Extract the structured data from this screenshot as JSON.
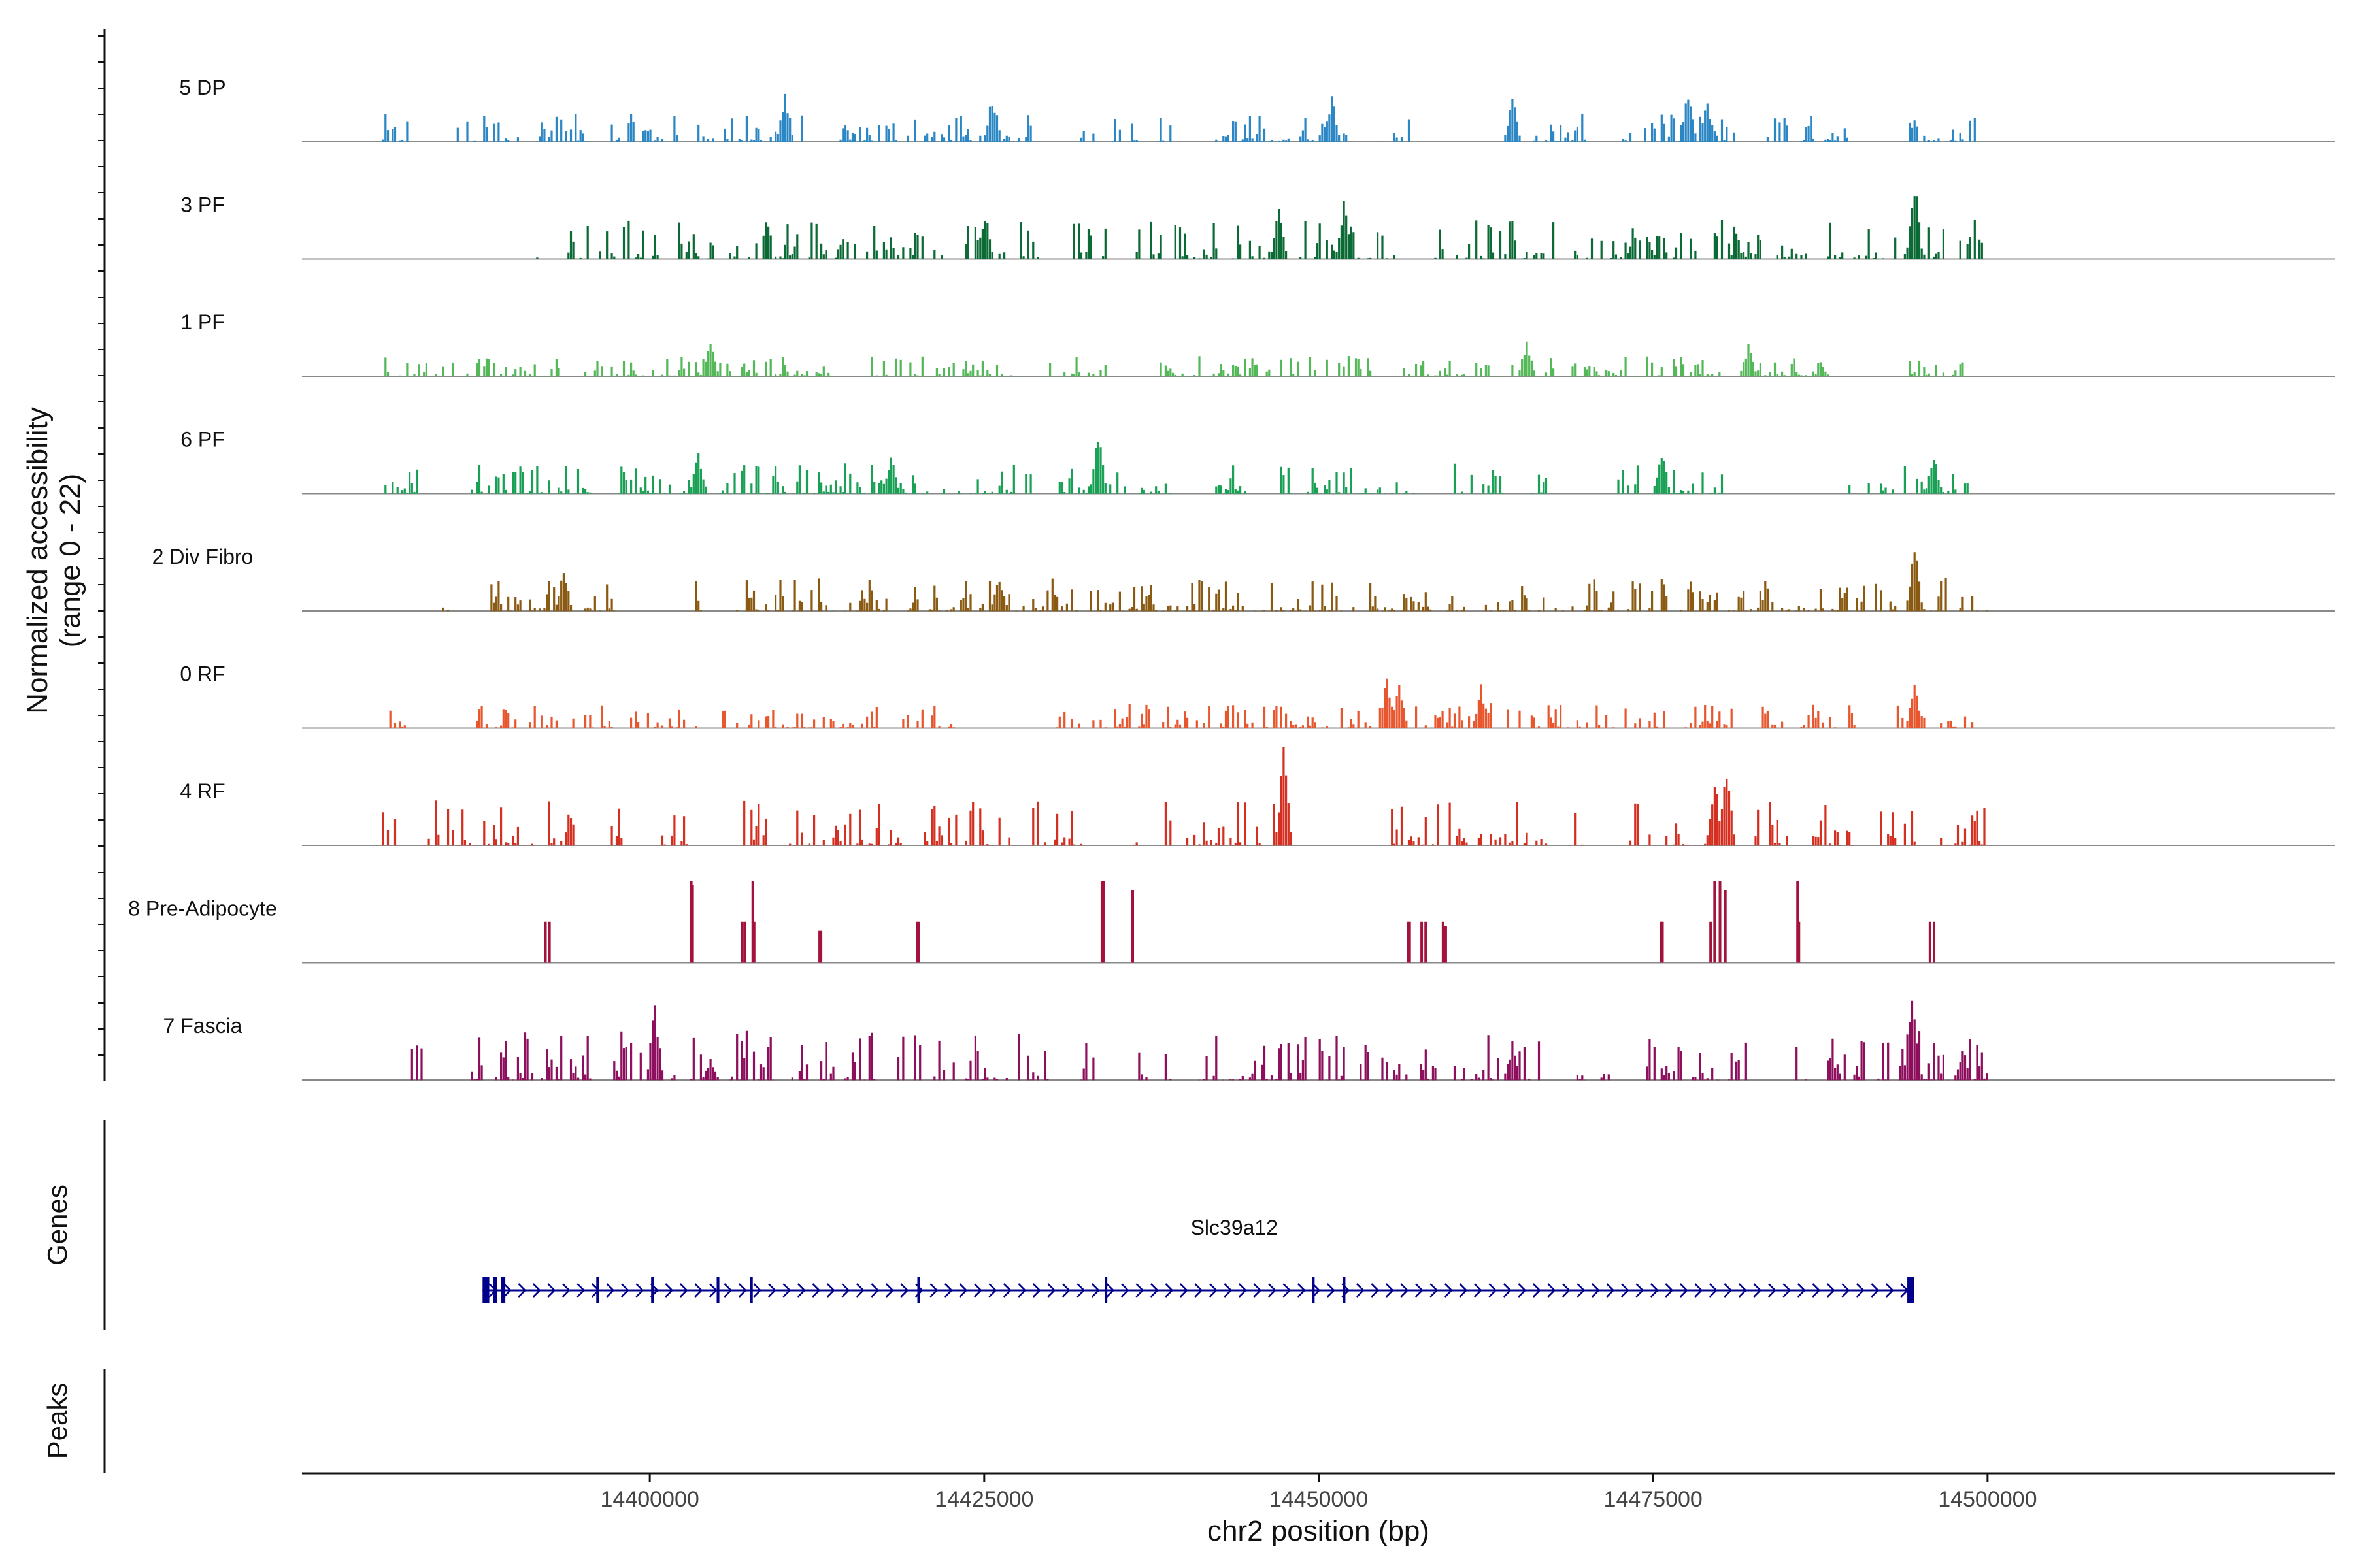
{
  "chart_data": {
    "type": "area",
    "title": "",
    "ylabel": "Normalized accessibility",
    "ylabel_range": "(range 0 - 22)",
    "ylim": [
      0,
      22
    ],
    "xlabel": "chr2 position (bp)",
    "xlim": [
      14374000,
      14526000
    ],
    "xticks": [
      14400000,
      14425000,
      14450000,
      14475000,
      14500000
    ],
    "xtick_labels": [
      "14400000",
      "14425000",
      "14450000",
      "14475000",
      "14500000"
    ],
    "data_range": [
      14380000,
      14500000
    ],
    "tracks": [
      {
        "name": "5 DP",
        "color": "#2b86c4",
        "max_rel": 0.55,
        "segments": [
          [
            14380000,
            14382000
          ],
          [
            14385500,
            14395500
          ],
          [
            14397000,
            14402000
          ],
          [
            14403500,
            14412000
          ],
          [
            14414000,
            14429000
          ],
          [
            14432000,
            14439000
          ],
          [
            14442000,
            14452000
          ],
          [
            14454000,
            14457000
          ],
          [
            14466000,
            14470000
          ],
          [
            14472000,
            14481000
          ],
          [
            14483000,
            14489500
          ],
          [
            14494000,
            14499000
          ]
        ],
        "peaks": [
          [
            14410000,
            0.5
          ],
          [
            14425500,
            0.45
          ],
          [
            14451000,
            0.45
          ],
          [
            14464500,
            0.45
          ],
          [
            14477500,
            0.5
          ],
          [
            14479000,
            0.4
          ]
        ]
      },
      {
        "name": "3 PF",
        "color": "#0b6a35",
        "max_rel": 0.8,
        "segments": [
          [
            14391000,
            14392000
          ],
          [
            14393500,
            14401000
          ],
          [
            14402000,
            14422000
          ],
          [
            14423500,
            14429000
          ],
          [
            14431000,
            14434000
          ],
          [
            14436000,
            14447500
          ],
          [
            14448500,
            14456000
          ],
          [
            14458500,
            14468000
          ],
          [
            14469000,
            14487000
          ],
          [
            14488000,
            14494000
          ],
          [
            14494500,
            14500000
          ]
        ],
        "peaks": [
          [
            14425000,
            0.45
          ],
          [
            14447000,
            0.5
          ],
          [
            14451800,
            0.55
          ],
          [
            14494500,
            0.8
          ]
        ]
      },
      {
        "name": "1 PF",
        "color": "#54b859",
        "max_rel": 0.4,
        "segments": [
          [
            14380000,
            14393500
          ],
          [
            14395000,
            14413500
          ],
          [
            14416000,
            14428000
          ],
          [
            14429500,
            14434000
          ],
          [
            14438000,
            14454000
          ],
          [
            14456000,
            14464500
          ],
          [
            14466500,
            14480000
          ],
          [
            14481500,
            14488000
          ],
          [
            14494000,
            14499000
          ]
        ],
        "peaks": [
          [
            14404500,
            0.38
          ],
          [
            14465500,
            0.35
          ],
          [
            14482000,
            0.3
          ]
        ]
      },
      {
        "name": "6 PF",
        "color": "#18a055",
        "max_rel": 0.6,
        "segments": [
          [
            14380000,
            14383000
          ],
          [
            14386000,
            14395500
          ],
          [
            14397500,
            14404000
          ],
          [
            14405000,
            14422000
          ],
          [
            14423000,
            14428500
          ],
          [
            14430500,
            14436000
          ],
          [
            14436500,
            14439000
          ],
          [
            14442000,
            14444500
          ],
          [
            14447000,
            14457500
          ],
          [
            14460000,
            14464000
          ],
          [
            14465500,
            14467000
          ],
          [
            14472000,
            14474000
          ],
          [
            14476000,
            14480500
          ],
          [
            14489500,
            14493000
          ],
          [
            14493500,
            14498500
          ]
        ],
        "peaks": [
          [
            14403500,
            0.4
          ],
          [
            14418000,
            0.4
          ],
          [
            14433500,
            0.6
          ],
          [
            14475500,
            0.45
          ],
          [
            14496000,
            0.38
          ]
        ]
      },
      {
        "name": "2 Div Fibro",
        "color": "#8a5a12",
        "max_rel": 0.65,
        "segments": [
          [
            14384500,
            14385000
          ],
          [
            14387000,
            14394000
          ],
          [
            14395000,
            14397500
          ],
          [
            14403000,
            14404000
          ],
          [
            14406000,
            14410000
          ],
          [
            14410500,
            14418000
          ],
          [
            14419000,
            14428000
          ],
          [
            14428500,
            14432000
          ],
          [
            14432500,
            14439500
          ],
          [
            14440000,
            14444500
          ],
          [
            14445000,
            14453000
          ],
          [
            14453500,
            14469000
          ],
          [
            14469500,
            14480000
          ],
          [
            14480500,
            14484000
          ],
          [
            14484500,
            14491000
          ],
          [
            14491500,
            14500000
          ]
        ],
        "peaks": [
          [
            14393500,
            0.4
          ],
          [
            14426000,
            0.35
          ],
          [
            14494500,
            0.65
          ]
        ]
      },
      {
        "name": "0 RF",
        "color": "#e8562e",
        "max_rel": 0.5,
        "segments": [
          [
            14380000,
            14382000
          ],
          [
            14387000,
            14390000
          ],
          [
            14390500,
            14393000
          ],
          [
            14393500,
            14404000
          ],
          [
            14405000,
            14417000
          ],
          [
            14418000,
            14423000
          ],
          [
            14430000,
            14442000
          ],
          [
            14442500,
            14462000
          ],
          [
            14462500,
            14476000
          ],
          [
            14477000,
            14481000
          ],
          [
            14483000,
            14485000
          ],
          [
            14486000,
            14490000
          ],
          [
            14493000,
            14499000
          ]
        ],
        "peaks": [
          [
            14455000,
            0.5
          ],
          [
            14456000,
            0.45
          ],
          [
            14462000,
            0.4
          ],
          [
            14494500,
            0.45
          ]
        ]
      },
      {
        "name": "4 RF",
        "color": "#d42f20",
        "max_rel": 0.9,
        "segments": [
          [
            14380000,
            14381000
          ],
          [
            14383000,
            14391500
          ],
          [
            14392000,
            14394500
          ],
          [
            14397000,
            14398000
          ],
          [
            14400000,
            14403000
          ],
          [
            14407000,
            14409000
          ],
          [
            14410000,
            14413000
          ],
          [
            14413500,
            14419000
          ],
          [
            14420500,
            14423000
          ],
          [
            14423500,
            14427000
          ],
          [
            14427500,
            14433000
          ],
          [
            14436000,
            14436500
          ],
          [
            14438500,
            14439000
          ],
          [
            14440000,
            14446000
          ],
          [
            14446500,
            14448000
          ],
          [
            14455000,
            14459000
          ],
          [
            14459500,
            14461000
          ],
          [
            14461500,
            14467000
          ],
          [
            14468500,
            14470000
          ],
          [
            14473000,
            14475000
          ],
          [
            14475500,
            14481000
          ],
          [
            14482500,
            14485000
          ],
          [
            14486500,
            14490000
          ],
          [
            14491500,
            14500000
          ]
        ],
        "peaks": [
          [
            14447300,
            0.9
          ],
          [
            14479500,
            0.65
          ],
          [
            14480500,
            0.75
          ]
        ]
      },
      {
        "name": "8 Pre-Adipocyte",
        "color": "#a3123d",
        "max_rel": 1.0,
        "spiky": true,
        "segments": [],
        "peaks": [
          [
            14392200,
            0.45
          ],
          [
            14392500,
            0.45
          ],
          [
            14403100,
            0.9
          ],
          [
            14403200,
            0.85
          ],
          [
            14406900,
            0.45
          ],
          [
            14407100,
            0.45
          ],
          [
            14407700,
            0.9
          ],
          [
            14407800,
            0.45
          ],
          [
            14412700,
            0.35
          ],
          [
            14412800,
            0.35
          ],
          [
            14420000,
            0.45
          ],
          [
            14420100,
            0.45
          ],
          [
            14433800,
            0.9
          ],
          [
            14433900,
            0.9
          ],
          [
            14436100,
            0.8
          ],
          [
            14456700,
            0.45
          ],
          [
            14456800,
            0.45
          ],
          [
            14457700,
            0.45
          ],
          [
            14458000,
            0.45
          ],
          [
            14459300,
            0.45
          ],
          [
            14459500,
            0.4
          ],
          [
            14475600,
            0.45
          ],
          [
            14475700,
            0.45
          ],
          [
            14479300,
            0.45
          ],
          [
            14479600,
            0.9
          ],
          [
            14480000,
            0.9
          ],
          [
            14480400,
            0.8
          ],
          [
            14485800,
            0.9
          ],
          [
            14485900,
            0.45
          ],
          [
            14495700,
            0.45
          ],
          [
            14496000,
            0.45
          ]
        ]
      },
      {
        "name": "7 Fascia",
        "color": "#8c0e5c",
        "max_rel": 1.0,
        "segments": [
          [
            14382000,
            14383000
          ],
          [
            14386500,
            14396000
          ],
          [
            14397000,
            14402000
          ],
          [
            14403000,
            14404000
          ],
          [
            14405500,
            14409500
          ],
          [
            14410000,
            14414000
          ],
          [
            14414500,
            14418000
          ],
          [
            14418500,
            14426000
          ],
          [
            14426500,
            14429000
          ],
          [
            14429500,
            14430000
          ],
          [
            14432000,
            14433500
          ],
          [
            14436500,
            14437500
          ],
          [
            14438500,
            14439000
          ],
          [
            14441000,
            14449000
          ],
          [
            14450000,
            14452000
          ],
          [
            14453000,
            14456500
          ],
          [
            14457500,
            14459000
          ],
          [
            14460000,
            14466500
          ],
          [
            14467000,
            14468000
          ],
          [
            14468500,
            14470000
          ],
          [
            14471000,
            14472000
          ],
          [
            14474500,
            14480000
          ],
          [
            14480500,
            14482000
          ],
          [
            14483500,
            14484000
          ],
          [
            14485500,
            14486500
          ],
          [
            14488000,
            14491000
          ],
          [
            14491500,
            14500000
          ]
        ],
        "peaks": [
          [
            14400300,
            0.75
          ],
          [
            14404500,
            0.2
          ],
          [
            14464500,
            0.35
          ],
          [
            14494300,
            0.95
          ],
          [
            14498000,
            0.3
          ]
        ]
      }
    ],
    "genes": [
      {
        "name": "Slc39a12",
        "start": 14387500,
        "end": 14494500,
        "strand": "+",
        "exons": [
          [
            14387500,
            14388000
          ],
          [
            14388300,
            14388600
          ],
          [
            14388900,
            14389200
          ],
          [
            14396000,
            14396200
          ],
          [
            14400100,
            14400300
          ],
          [
            14405000,
            14405200
          ],
          [
            14407500,
            14407700
          ],
          [
            14420000,
            14420200
          ],
          [
            14434000,
            14434200
          ],
          [
            14449500,
            14449700
          ],
          [
            14451800,
            14452000
          ],
          [
            14494000,
            14494500
          ]
        ]
      }
    ],
    "peaks_track": [],
    "side_labels": {
      "genes": "Genes",
      "peaks": "Peaks"
    }
  }
}
